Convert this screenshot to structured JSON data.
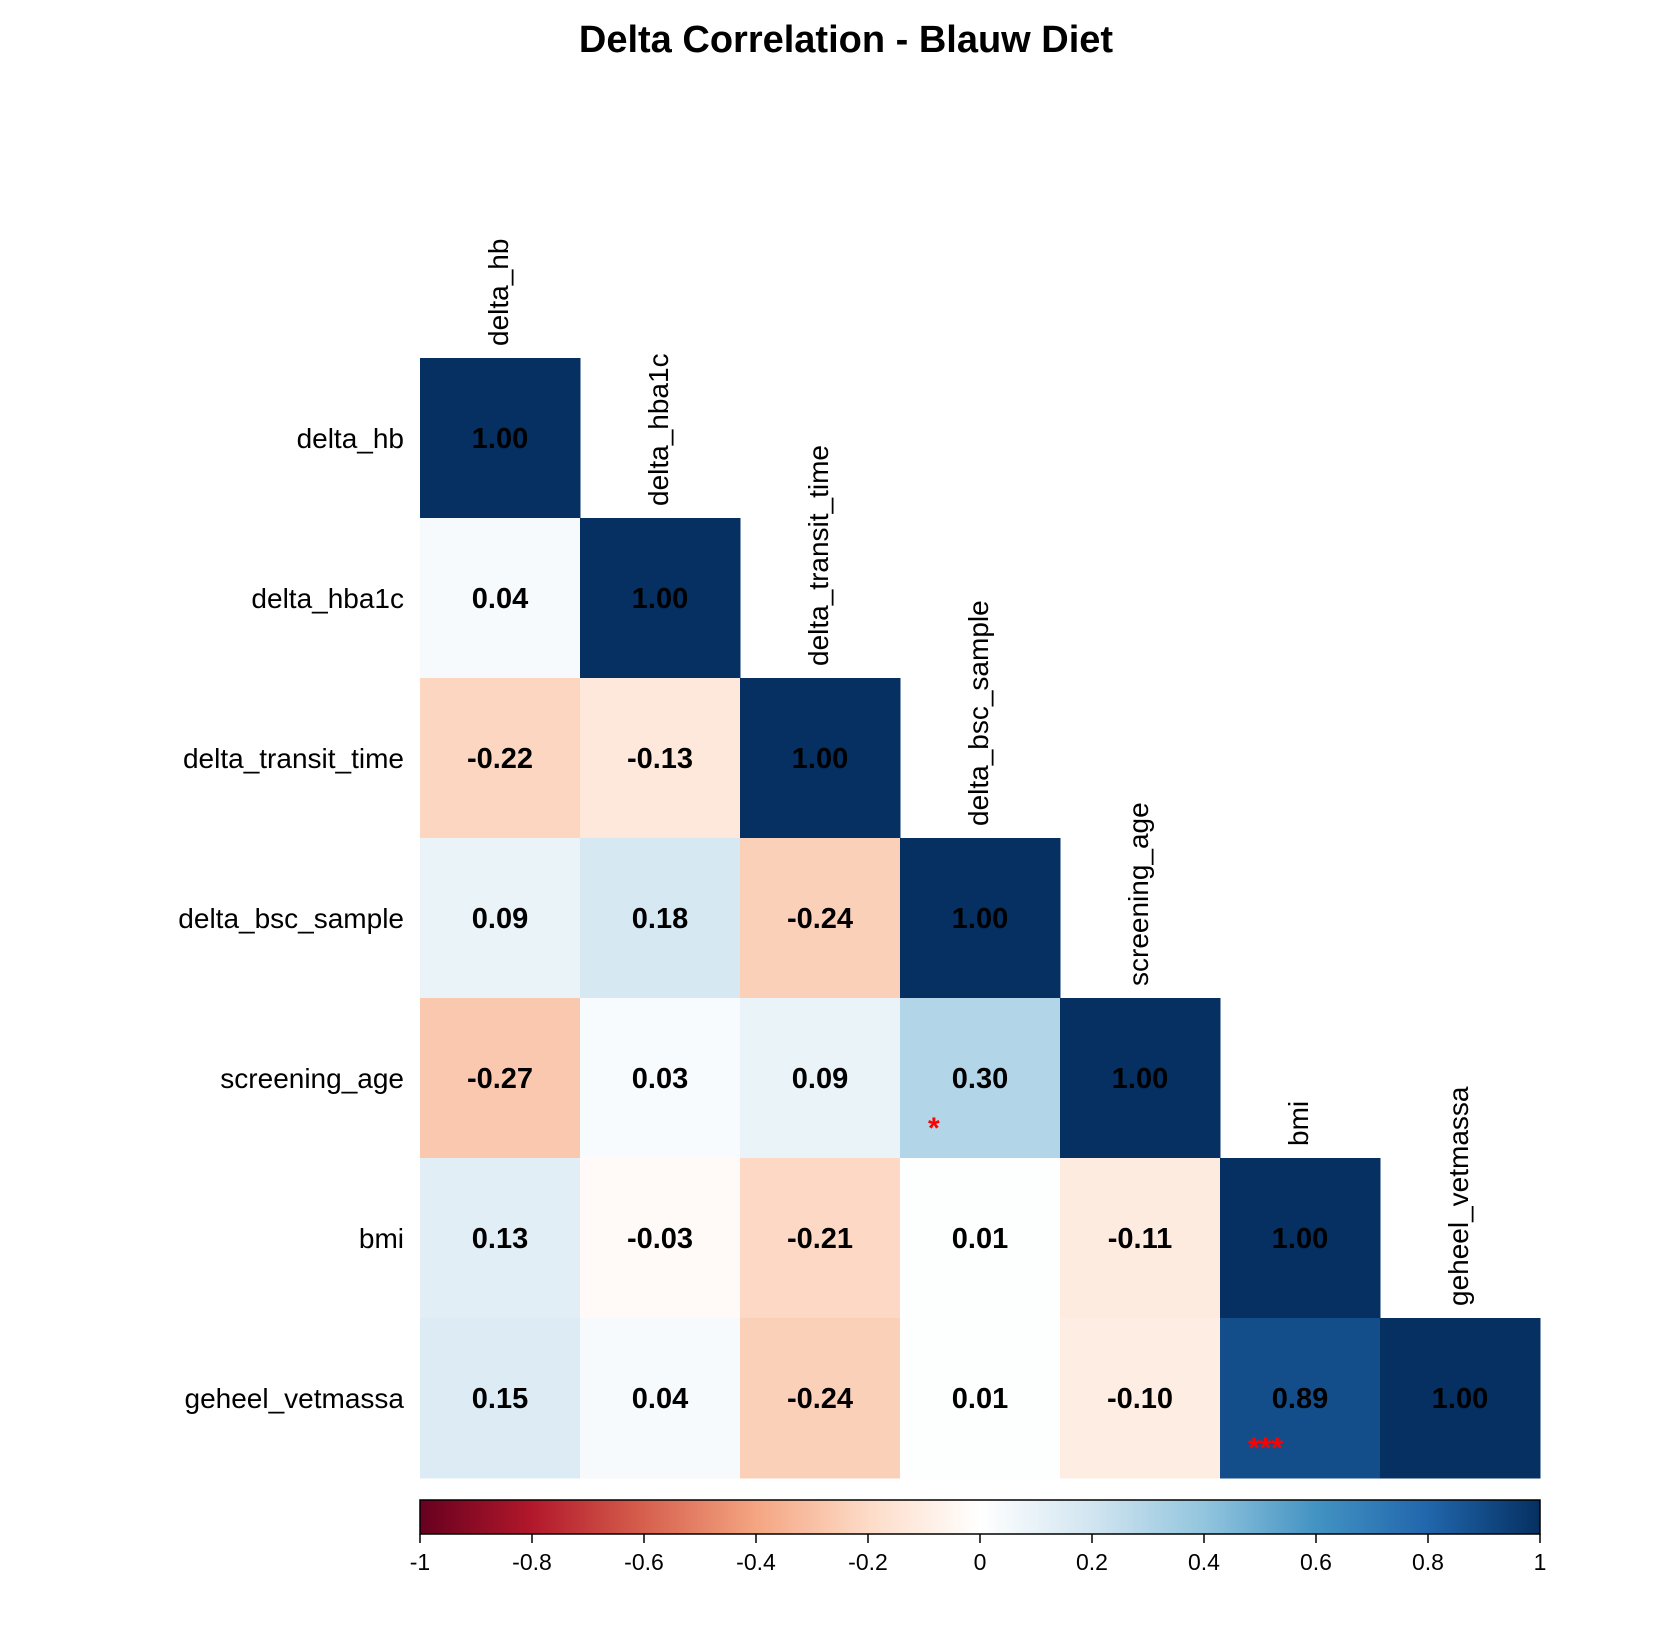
{
  "chart_data": {
    "type": "heatmap",
    "title": "Delta Correlation - Blauw Diet",
    "variables": [
      "delta_hb",
      "delta_hba1c",
      "delta_transit_time",
      "delta_bsc_sample",
      "screening_age",
      "bmi",
      "geheel_vetmassa"
    ],
    "matrix": [
      [
        1.0,
        null,
        null,
        null,
        null,
        null,
        null
      ],
      [
        0.04,
        1.0,
        null,
        null,
        null,
        null,
        null
      ],
      [
        -0.22,
        -0.13,
        1.0,
        null,
        null,
        null,
        null
      ],
      [
        0.09,
        0.18,
        -0.24,
        1.0,
        null,
        null,
        null
      ],
      [
        -0.27,
        0.03,
        0.09,
        0.3,
        1.0,
        null,
        null
      ],
      [
        0.13,
        -0.03,
        -0.21,
        0.01,
        -0.11,
        1.0,
        null
      ],
      [
        0.15,
        0.04,
        -0.24,
        0.01,
        -0.1,
        0.89,
        1.0
      ]
    ],
    "labels": [
      [
        "1.00",
        "",
        "",
        "",
        "",
        "",
        ""
      ],
      [
        "0.04",
        "1.00",
        "",
        "",
        "",
        "",
        ""
      ],
      [
        "-0.22",
        "-0.13",
        "1.00",
        "",
        "",
        "",
        ""
      ],
      [
        "0.09",
        "0.18",
        "-0.24",
        "1.00",
        "",
        "",
        ""
      ],
      [
        "-0.27",
        "0.03",
        "0.09",
        "0.30",
        "1.00",
        "",
        ""
      ],
      [
        "0.13",
        "-0.03",
        "-0.21",
        "0.01",
        "-0.11",
        "1.00",
        ""
      ],
      [
        "0.15",
        "0.04",
        "-0.24",
        "0.01",
        "-0.10",
        "0.89",
        "1.00"
      ]
    ],
    "significance": [
      {
        "row": 4,
        "col": 3,
        "mark": "*"
      },
      {
        "row": 6,
        "col": 5,
        "mark": "***"
      }
    ],
    "colorbar": {
      "range": [
        -1,
        1
      ],
      "tick_values": [
        -1,
        -0.8,
        -0.6,
        -0.4,
        -0.2,
        0,
        0.2,
        0.4,
        0.6,
        0.8,
        1
      ],
      "tick_labels": [
        "-1",
        "-0.8",
        "-0.6",
        "-0.4",
        "-0.2",
        "0",
        "0.2",
        "0.4",
        "0.6",
        "0.8",
        "1"
      ],
      "colors": [
        "#67001f",
        "#b2182b",
        "#d6604d",
        "#f4a582",
        "#fddbc7",
        "#ffffff",
        "#d1e5f0",
        "#92c5de",
        "#4393c3",
        "#2166ac",
        "#053061"
      ]
    },
    "significance_color": "#ff0000",
    "lower_triangle": true
  }
}
